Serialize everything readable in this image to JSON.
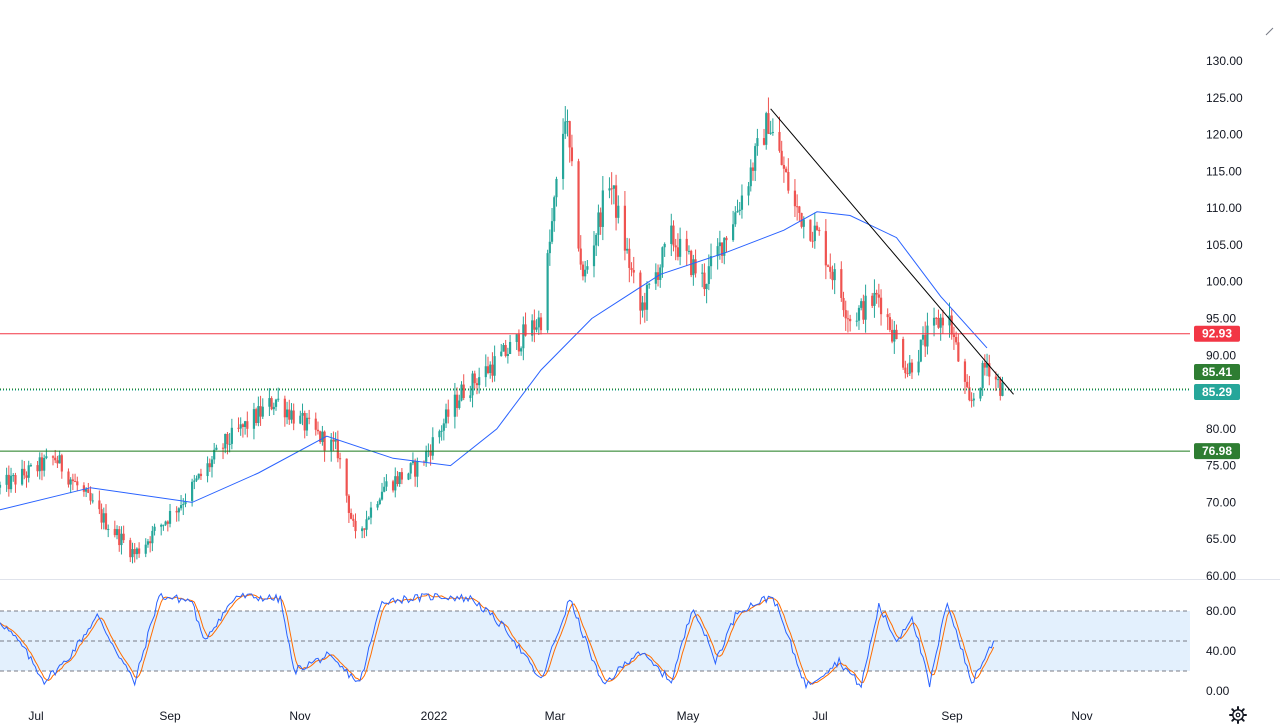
{
  "colors": {
    "up": "#26a69a",
    "down": "#ef5350",
    "ma": "#2962ff",
    "resistance": "#f23645",
    "support": "#1b7a1b",
    "current": "#089981",
    "trend": "#000000",
    "k_line": "#2962ff",
    "d_line": "#ff6d00",
    "band_fill": "#e3f0fd",
    "badge_resistance": "#f23645",
    "badge_support": "#2e7d32",
    "badge_last": "#26a69a"
  },
  "icons": {
    "settings": "gear-icon"
  },
  "chart_data": [
    {
      "type": "candlestick",
      "title": "",
      "ylim": [
        60,
        132
      ],
      "y_ticks": [
        "130.00",
        "125.00",
        "120.00",
        "115.00",
        "110.00",
        "105.00",
        "100.00",
        "95.00",
        "90.00",
        "85.00",
        "80.00",
        "75.00",
        "70.00",
        "65.00",
        "60.00"
      ],
      "x_ticks": [
        "Jul",
        "Sep",
        "Nov",
        "2022",
        "Mar",
        "May",
        "Jul",
        "Sep",
        "Nov"
      ],
      "price_path": [
        {
          "t": "2021-06-25",
          "v": 72
        },
        {
          "t": "2021-07-20",
          "v": 76
        },
        {
          "t": "2021-08-10",
          "v": 68
        },
        {
          "t": "2021-08-25",
          "v": 63
        },
        {
          "t": "2021-09-15",
          "v": 70
        },
        {
          "t": "2021-10-05",
          "v": 78
        },
        {
          "t": "2021-10-28",
          "v": 84
        },
        {
          "t": "2021-11-08",
          "v": 81
        },
        {
          "t": "2021-11-25",
          "v": 77
        },
        {
          "t": "2021-12-03",
          "v": 65
        },
        {
          "t": "2021-12-15",
          "v": 72
        },
        {
          "t": "2022-01-01",
          "v": 75
        },
        {
          "t": "2022-01-20",
          "v": 85
        },
        {
          "t": "2022-02-08",
          "v": 90
        },
        {
          "t": "2022-02-25",
          "v": 95
        },
        {
          "t": "2022-03-08",
          "v": 123
        },
        {
          "t": "2022-03-16",
          "v": 100
        },
        {
          "t": "2022-03-28",
          "v": 114
        },
        {
          "t": "2022-04-11",
          "v": 96
        },
        {
          "t": "2022-04-25",
          "v": 106
        },
        {
          "t": "2022-05-10",
          "v": 100
        },
        {
          "t": "2022-05-25",
          "v": 110
        },
        {
          "t": "2022-06-08",
          "v": 122
        },
        {
          "t": "2022-06-20",
          "v": 110
        },
        {
          "t": "2022-07-01",
          "v": 106
        },
        {
          "t": "2022-07-15",
          "v": 95
        },
        {
          "t": "2022-07-28",
          "v": 98
        },
        {
          "t": "2022-08-10",
          "v": 88
        },
        {
          "t": "2022-08-20",
          "v": 93
        },
        {
          "t": "2022-08-28",
          "v": 96
        },
        {
          "t": "2022-09-07",
          "v": 83
        },
        {
          "t": "2022-09-15",
          "v": 89
        },
        {
          "t": "2022-09-22",
          "v": 85.3
        }
      ],
      "moving_average": [
        {
          "t": "2021-06-25",
          "v": 69
        },
        {
          "t": "2021-08-05",
          "v": 72
        },
        {
          "t": "2021-09-20",
          "v": 70
        },
        {
          "t": "2021-10-20",
          "v": 74
        },
        {
          "t": "2021-11-20",
          "v": 79
        },
        {
          "t": "2021-12-20",
          "v": 76
        },
        {
          "t": "2022-01-15",
          "v": 75
        },
        {
          "t": "2022-02-05",
          "v": 80
        },
        {
          "t": "2022-02-25",
          "v": 88
        },
        {
          "t": "2022-03-20",
          "v": 95
        },
        {
          "t": "2022-04-20",
          "v": 101
        },
        {
          "t": "2022-05-20",
          "v": 104
        },
        {
          "t": "2022-06-15",
          "v": 107
        },
        {
          "t": "2022-06-30",
          "v": 109.5
        },
        {
          "t": "2022-07-15",
          "v": 109
        },
        {
          "t": "2022-08-05",
          "v": 106
        },
        {
          "t": "2022-08-25",
          "v": 98
        },
        {
          "t": "2022-09-15",
          "v": 91
        }
      ],
      "trendline": [
        {
          "t": "2022-06-09",
          "v": 123.5
        },
        {
          "t": "2022-09-27",
          "v": 84.7
        }
      ],
      "horizontal_levels": [
        {
          "label": "92.93",
          "value": 92.93,
          "kind": "resistance"
        },
        {
          "label": "85.41",
          "value": 85.41,
          "kind": "support"
        },
        {
          "label": "85.29",
          "value": 85.29,
          "kind": "last"
        },
        {
          "label": "76.98",
          "value": 76.98,
          "kind": "support"
        }
      ]
    },
    {
      "type": "line",
      "title": "",
      "ylim": [
        0,
        100
      ],
      "y_ticks": [
        "80.00",
        "40.00",
        "0.00"
      ],
      "band": [
        20,
        80
      ],
      "midline": 50,
      "k_path": [
        {
          "t": "2021-06-25",
          "v": 70
        },
        {
          "t": "2021-07-05",
          "v": 45
        },
        {
          "t": "2021-07-15",
          "v": 10
        },
        {
          "t": "2021-07-25",
          "v": 30
        },
        {
          "t": "2021-08-08",
          "v": 75
        },
        {
          "t": "2021-08-25",
          "v": 8
        },
        {
          "t": "2021-09-05",
          "v": 95
        },
        {
          "t": "2021-09-20",
          "v": 90
        },
        {
          "t": "2021-09-25",
          "v": 50
        },
        {
          "t": "2021-10-10",
          "v": 95
        },
        {
          "t": "2021-10-30",
          "v": 92
        },
        {
          "t": "2021-11-05",
          "v": 20
        },
        {
          "t": "2021-11-20",
          "v": 35
        },
        {
          "t": "2021-12-05",
          "v": 8
        },
        {
          "t": "2021-12-15",
          "v": 90
        },
        {
          "t": "2022-01-10",
          "v": 95
        },
        {
          "t": "2022-01-25",
          "v": 92
        },
        {
          "t": "2022-02-10",
          "v": 60
        },
        {
          "t": "2022-02-25",
          "v": 10
        },
        {
          "t": "2022-03-10",
          "v": 92
        },
        {
          "t": "2022-03-25",
          "v": 5
        },
        {
          "t": "2022-04-10",
          "v": 40
        },
        {
          "t": "2022-04-25",
          "v": 10
        },
        {
          "t": "2022-05-05",
          "v": 85
        },
        {
          "t": "2022-05-15",
          "v": 30
        },
        {
          "t": "2022-05-25",
          "v": 80
        },
        {
          "t": "2022-06-10",
          "v": 95
        },
        {
          "t": "2022-06-25",
          "v": 5
        },
        {
          "t": "2022-07-10",
          "v": 30
        },
        {
          "t": "2022-07-20",
          "v": 5
        },
        {
          "t": "2022-07-28",
          "v": 85
        },
        {
          "t": "2022-08-05",
          "v": 50
        },
        {
          "t": "2022-08-12",
          "v": 75
        },
        {
          "t": "2022-08-20",
          "v": 5
        },
        {
          "t": "2022-08-28",
          "v": 90
        },
        {
          "t": "2022-09-08",
          "v": 8
        },
        {
          "t": "2022-09-18",
          "v": 50
        }
      ]
    }
  ]
}
